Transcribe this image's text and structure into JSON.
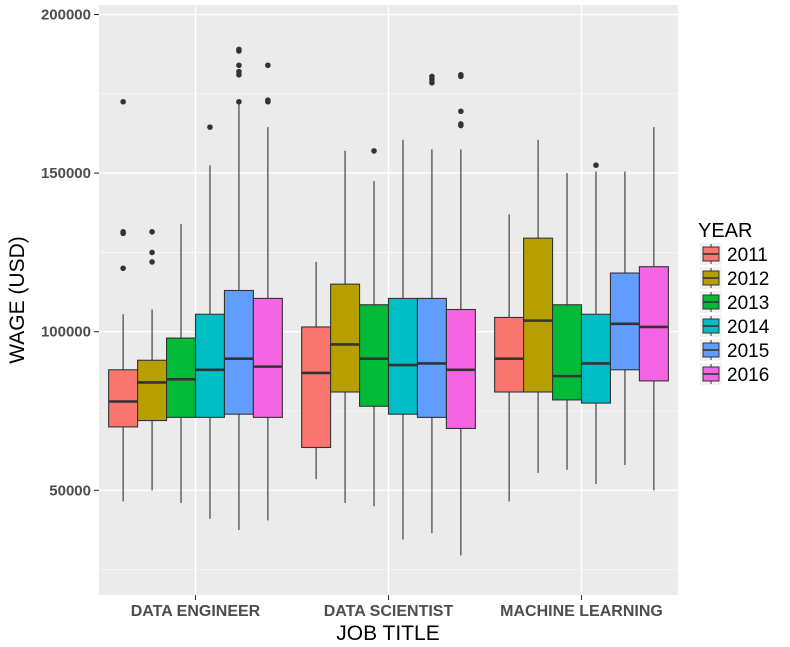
{
  "chart_data": {
    "type": "boxplot",
    "xlabel": "JOB TITLE",
    "ylabel": "WAGE (USD)",
    "ylim": [
      17000,
      203000
    ],
    "yticks": [
      50000,
      100000,
      150000,
      200000
    ],
    "grid": true,
    "legend": {
      "title": "YEAR",
      "placement": "right"
    },
    "categories": [
      "DATA ENGINEER",
      "DATA SCIENTIST",
      "MACHINE LEARNING"
    ],
    "series": [
      {
        "name": "2011",
        "color": "#F8766D",
        "boxes": [
          {
            "whisker_low": 46500,
            "q1": 70000,
            "median": 78000,
            "q3": 88000,
            "whisker_high": 105500,
            "outliers": [
              120000,
              131000,
              131500,
              172500
            ]
          },
          {
            "whisker_low": 53500,
            "q1": 63500,
            "median": 87000,
            "q3": 101500,
            "whisker_high": 122000,
            "outliers": []
          },
          {
            "whisker_low": 46500,
            "q1": 81000,
            "median": 91500,
            "q3": 104500,
            "whisker_high": 137000,
            "outliers": []
          }
        ]
      },
      {
        "name": "2012",
        "color": "#B79F00",
        "boxes": [
          {
            "whisker_low": 50000,
            "q1": 72000,
            "median": 84000,
            "q3": 91000,
            "whisker_high": 107000,
            "outliers": [
              122000,
              125000,
              131500
            ]
          },
          {
            "whisker_low": 46000,
            "q1": 81000,
            "median": 96000,
            "q3": 115000,
            "whisker_high": 157000,
            "outliers": []
          },
          {
            "whisker_low": 55500,
            "q1": 81000,
            "median": 103500,
            "q3": 129500,
            "whisker_high": 160500,
            "outliers": []
          }
        ]
      },
      {
        "name": "2013",
        "color": "#00BA38",
        "boxes": [
          {
            "whisker_low": 46000,
            "q1": 73000,
            "median": 85000,
            "q3": 98000,
            "whisker_high": 134000,
            "outliers": []
          },
          {
            "whisker_low": 45000,
            "q1": 76500,
            "median": 91500,
            "q3": 108500,
            "whisker_high": 147500,
            "outliers": [
              157000
            ]
          },
          {
            "whisker_low": 56500,
            "q1": 78500,
            "median": 86000,
            "q3": 108500,
            "whisker_high": 150000,
            "outliers": []
          }
        ]
      },
      {
        "name": "2014",
        "color": "#00BFC4",
        "boxes": [
          {
            "whisker_low": 41000,
            "q1": 73000,
            "median": 88000,
            "q3": 105500,
            "whisker_high": 152500,
            "outliers": [
              164500
            ]
          },
          {
            "whisker_low": 34500,
            "q1": 74000,
            "median": 89500,
            "q3": 110500,
            "whisker_high": 160500,
            "outliers": []
          },
          {
            "whisker_low": 52000,
            "q1": 77500,
            "median": 90000,
            "q3": 105500,
            "whisker_high": 150500,
            "outliers": [
              152500
            ]
          }
        ]
      },
      {
        "name": "2015",
        "color": "#619CFF",
        "boxes": [
          {
            "whisker_low": 37500,
            "q1": 74000,
            "median": 91500,
            "q3": 113000,
            "whisker_high": 172000,
            "outliers": [
              172500,
              181000,
              182000,
              184000,
              188500,
              189000
            ]
          },
          {
            "whisker_low": 36500,
            "q1": 73000,
            "median": 90000,
            "q3": 110500,
            "whisker_high": 157500,
            "outliers": [
              178500,
              179500,
              180500
            ]
          },
          {
            "whisker_low": 58000,
            "q1": 88000,
            "median": 102500,
            "q3": 118500,
            "whisker_high": 150500,
            "outliers": []
          }
        ]
      },
      {
        "name": "2016",
        "color": "#F564E3",
        "boxes": [
          {
            "whisker_low": 40500,
            "q1": 73000,
            "median": 89000,
            "q3": 110500,
            "whisker_high": 164500,
            "outliers": [
              172500,
              173000,
              184000
            ]
          },
          {
            "whisker_low": 29500,
            "q1": 69500,
            "median": 88000,
            "q3": 107000,
            "whisker_high": 157500,
            "outliers": [
              165000,
              165500,
              169500,
              180500,
              181000
            ]
          },
          {
            "whisker_low": 50000,
            "q1": 84500,
            "median": 101500,
            "q3": 120500,
            "whisker_high": 164500,
            "outliers": []
          }
        ]
      }
    ]
  }
}
